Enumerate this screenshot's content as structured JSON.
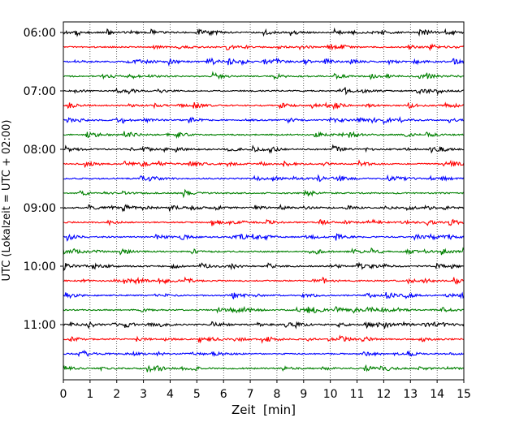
{
  "chart_data": {
    "type": "line",
    "subtype": "helicorder",
    "title": "",
    "xlabel": "Zeit  [min]",
    "ylabel": "UTC (Lokalzeit = UTC + 02:00)",
    "xlim": [
      0,
      15
    ],
    "x_ticks": [
      "0",
      "1",
      "2",
      "3",
      "4",
      "5",
      "6",
      "7",
      "8",
      "9",
      "10",
      "11",
      "12",
      "13",
      "14",
      "15"
    ],
    "y_tick_labels": [
      "06:00",
      "07:00",
      "08:00",
      "09:00",
      "10:00",
      "11:00"
    ],
    "trace_interval_min": 15,
    "trace_start_times": [
      "06:00",
      "06:15",
      "06:30",
      "06:45",
      "07:00",
      "07:15",
      "07:30",
      "07:45",
      "08:00",
      "08:15",
      "08:30",
      "08:45",
      "09:00",
      "09:15",
      "09:30",
      "09:45",
      "10:00",
      "10:15",
      "10:30",
      "10:45",
      "11:00",
      "11:15",
      "11:30",
      "11:45"
    ],
    "trace_colors": [
      "#000000",
      "#ff0000",
      "#0000ff",
      "#008000"
    ],
    "vertical_grid": true,
    "grid_style": "dotted",
    "legend": "none"
  }
}
